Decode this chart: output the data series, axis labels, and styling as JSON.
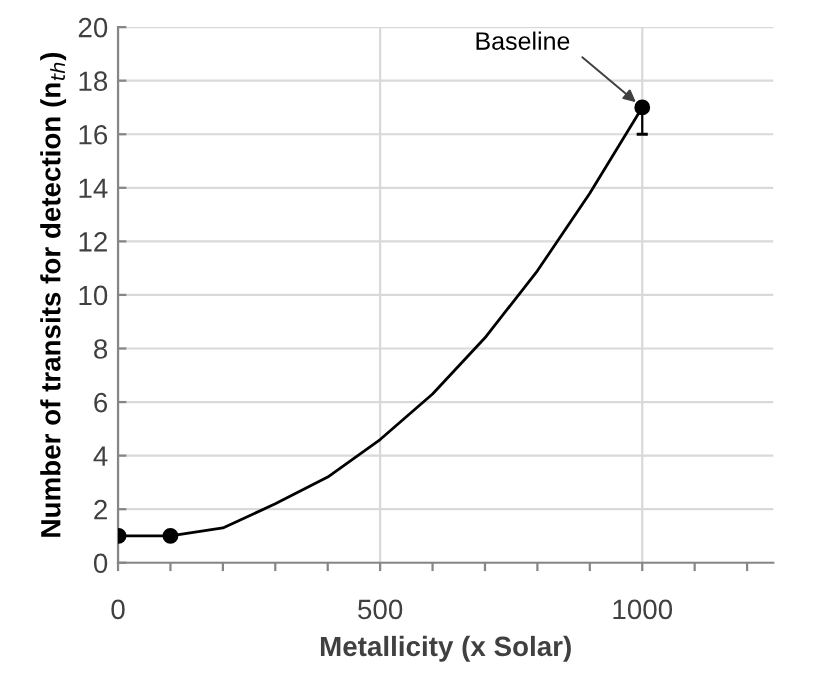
{
  "chart_data": {
    "type": "scatter",
    "xlabel": "Metallicity (x Solar)",
    "ylabel": "Number of transits for detection (n$_{th}$)",
    "series": [
      {
        "color": "#000000",
        "marker": "circle",
        "x": [
          1,
          100,
          1000
        ],
        "values": [
          1,
          1,
          17
        ],
        "errors": [
          null,
          null,
          [
            16,
            17
          ]
        ]
      },
      {
        "type": "line",
        "color": "#000000",
        "x": [
          1,
          50,
          100,
          200,
          300,
          400,
          500,
          600,
          700,
          800,
          900,
          1000
        ],
        "values": [
          1,
          1,
          1,
          1.3,
          2.2,
          3.2,
          4.6,
          6.3,
          8.4,
          10.9,
          13.8,
          17
        ]
      }
    ],
    "annotations": [
      {
        "text": "Baseline",
        "x": 1000,
        "y": 17
      }
    ],
    "xlim": [
      0,
      1250
    ],
    "xticks": [
      0,
      {
        "value": 100,
        "label": null
      },
      {
        "value": 200,
        "label": null
      },
      {
        "value": 300,
        "label": null
      },
      {
        "value": 400,
        "label": null
      },
      500,
      {
        "value": 600,
        "label": null
      },
      {
        "value": 700,
        "label": null
      },
      {
        "value": 800,
        "label": null
      },
      {
        "value": 900,
        "label": null
      },
      1000,
      {
        "value": 1100,
        "label": null
      },
      {
        "value": 1200,
        "label": null
      }
    ],
    "ylim": [
      0,
      20
    ],
    "yticks": [
      0,
      2,
      4,
      6,
      8,
      10,
      12,
      14,
      16,
      18,
      20
    ],
    "grid": true
  }
}
